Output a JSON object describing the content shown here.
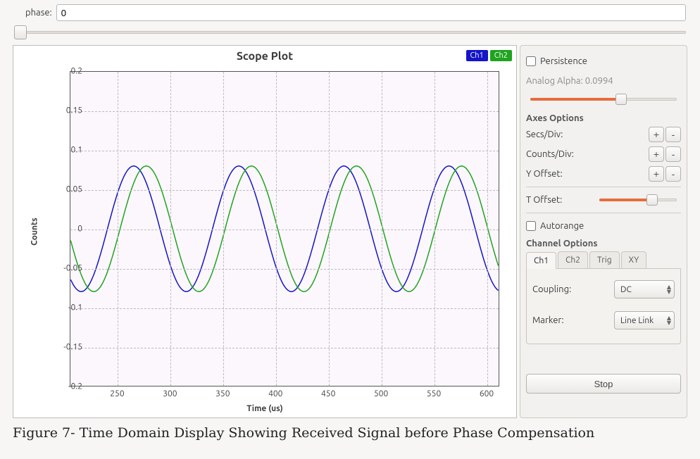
{
  "phase_field": {
    "label": "phase:",
    "value": "0"
  },
  "main_slider": {
    "pos_pct": 0
  },
  "plot": {
    "title": "Scope Plot",
    "xlabel": "Time (us)",
    "ylabel": "Counts",
    "background_color": "#fcf7fd",
    "grid_color": "#bbbbbb",
    "border_color": "#555555",
    "xlim": [
      205,
      612
    ],
    "ylim": [
      -0.2,
      0.2
    ],
    "xticks": [
      250,
      300,
      350,
      400,
      450,
      500,
      550,
      600
    ],
    "yticks": [
      -0.2,
      -0.15,
      -0.1,
      -0.05,
      0,
      0.05,
      0.1,
      0.15,
      0.2
    ],
    "tick_fontsize": 12,
    "title_fontsize": 16,
    "line_width": 1.5,
    "legend": [
      {
        "label": "Ch1",
        "color": "#1414c8"
      },
      {
        "label": "Ch2",
        "color": "#1ea41e"
      }
    ],
    "series": {
      "ch1": {
        "color": "#1414c8",
        "amplitude": 0.08,
        "period_us": 100,
        "phase_us": 240
      },
      "ch2": {
        "color": "#1ea41e",
        "amplitude": 0.08,
        "period_us": 100,
        "phase_us": 252
      }
    }
  },
  "controls": {
    "persistence": {
      "label": "Persistence",
      "checked": false
    },
    "analog_alpha": {
      "label": "Analog Alpha:",
      "value": "0.0994",
      "slider_pct": 62
    },
    "axes_title": "Axes Options",
    "secs_div": {
      "label": "Secs/Div:"
    },
    "counts_div": {
      "label": "Counts/Div:"
    },
    "y_offset": {
      "label": "Y Offset:"
    },
    "t_offset": {
      "label": "T Offset:",
      "slider_pct": 68
    },
    "autorange": {
      "label": "Autorange",
      "checked": false
    },
    "channel_title": "Channel Options",
    "tabs": [
      "Ch1",
      "Ch2",
      "Trig",
      "XY"
    ],
    "active_tab": 0,
    "coupling": {
      "label": "Coupling:",
      "value": "DC"
    },
    "marker": {
      "label": "Marker:",
      "value": "Line Link"
    },
    "stop_label": "Stop",
    "slider_fill_color": "#e86c3a"
  },
  "caption": "Figure 7- Time Domain Display Showing Received Signal before Phase Compensation"
}
